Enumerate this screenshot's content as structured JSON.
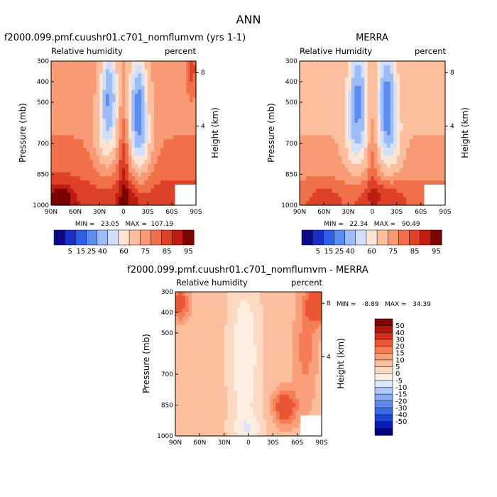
{
  "figure": {
    "title": "ANN"
  },
  "colors": {
    "abs_scale": [
      "#0b0b8a",
      "#1b2fc6",
      "#2f5fe6",
      "#5d8cf0",
      "#9bbcf6",
      "#cfe0fb",
      "#fde4d4",
      "#fbbf9e",
      "#f89a74",
      "#f0704a",
      "#dd4228",
      "#be1d10",
      "#7d0202"
    ],
    "diff_scale": [
      "#00007a",
      "#0a1fb0",
      "#1f45d6",
      "#3a6be8",
      "#5a8af0",
      "#86a9f4",
      "#b0c7f8",
      "#d9e6fc",
      "#fdeee2",
      "#fcd9c1",
      "#fbbf9e",
      "#f89f7b",
      "#f47d56",
      "#ea5633",
      "#d52d18",
      "#b4130a",
      "#840000"
    ]
  },
  "chart_data": [
    {
      "type": "heatmap",
      "id": "model",
      "title": "f2000.099.pmf.cuushr01.c701_nomflumvm (yrs 1-1)",
      "variable": "Relative humidity",
      "units": "percent",
      "ylabel": "Pressure (mb)",
      "y2label": "Height (km)",
      "x_ticks": [
        "90N",
        "60N",
        "30N",
        "0",
        "30S",
        "60S",
        "90S"
      ],
      "x_values": [
        90,
        60,
        30,
        0,
        -30,
        -60,
        -90
      ],
      "y_ticks": [
        "300",
        "400",
        "500",
        "700",
        "850",
        "1000"
      ],
      "y_values": [
        300,
        400,
        500,
        700,
        850,
        1000
      ],
      "y2_ticks": [
        "8",
        "4"
      ],
      "stats": "MIN =   23.05   MAX =  107.19",
      "min": 23.05,
      "max": 107.19,
      "colorbar_labels": [
        "5",
        "15",
        "25",
        "40",
        "60",
        "75",
        "85",
        "95"
      ]
    },
    {
      "type": "heatmap",
      "id": "obs",
      "title": "MERRA",
      "variable": "Relative Humidity",
      "units": "percent",
      "ylabel": "Pressure (mb)",
      "y2label": "Height (km)",
      "x_ticks": [
        "90N",
        "60N",
        "30N",
        "0",
        "30S",
        "60S",
        "90S"
      ],
      "x_values": [
        90,
        60,
        30,
        0,
        -30,
        -60,
        -90
      ],
      "y_ticks": [
        "300",
        "400",
        "500",
        "700",
        "850",
        "1000"
      ],
      "y_values": [
        300,
        400,
        500,
        700,
        850,
        1000
      ],
      "y2_ticks": [
        "8",
        "4"
      ],
      "stats": "MIN =   22.34   MAX =   90.49",
      "min": 22.34,
      "max": 90.49,
      "colorbar_labels": [
        "5",
        "15",
        "25",
        "40",
        "60",
        "75",
        "85",
        "95"
      ]
    },
    {
      "type": "heatmap",
      "id": "diff",
      "title": "f2000.099.pmf.cuushr01.c701_nomflumvm - MERRA",
      "variable": "Relative humidity",
      "units": "percent",
      "ylabel": "Pressure (mb)",
      "y2label": "Height (km)",
      "x_ticks": [
        "90N",
        "60N",
        "30N",
        "0",
        "30S",
        "60S",
        "90S"
      ],
      "x_values": [
        90,
        60,
        30,
        0,
        -30,
        -60,
        -90
      ],
      "y_ticks": [
        "300",
        "400",
        "500",
        "700",
        "850",
        "1000"
      ],
      "y_values": [
        300,
        400,
        500,
        700,
        850,
        1000
      ],
      "y2_ticks": [
        "8",
        "4"
      ],
      "stats": "MIN =   -8.89   MAX =   34.39",
      "min": -8.89,
      "max": 34.39,
      "colorbar_labels": [
        "50",
        "40",
        "30",
        "20",
        "15",
        "10",
        "5",
        "0",
        "-5",
        "-10",
        "-15",
        "-20",
        "-30",
        "-40",
        "-50"
      ]
    }
  ]
}
